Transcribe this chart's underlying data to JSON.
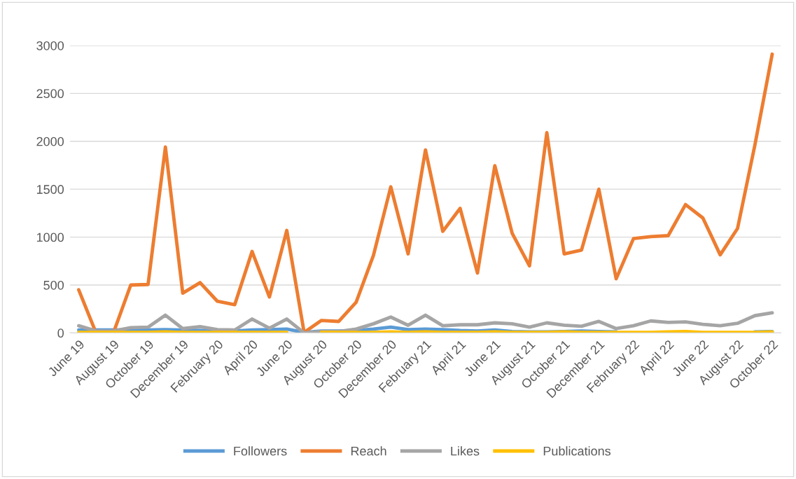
{
  "chart_data": {
    "type": "line",
    "categories": [
      "June 19",
      null,
      "August 19",
      null,
      "October 19",
      null,
      "December 19",
      null,
      "February 20",
      null,
      "April 20",
      null,
      "June 20",
      null,
      "August 20",
      null,
      "October 20",
      null,
      "December 20",
      null,
      "February 21",
      null,
      "April 21",
      null,
      "June 21",
      null,
      "August 21",
      null,
      "October 21",
      null,
      "December 21",
      null,
      "February 22",
      null,
      "April 22",
      null,
      "June 22",
      null,
      "August 22",
      null,
      "October 22"
    ],
    "series": [
      {
        "name": "Followers",
        "color": "#5b9bd5",
        "values": [
          30,
          30,
          30,
          30,
          30,
          35,
          30,
          25,
          20,
          20,
          30,
          35,
          40,
          5,
          20,
          20,
          25,
          40,
          60,
          35,
          40,
          35,
          25,
          20,
          30,
          15,
          10,
          10,
          15,
          20,
          15,
          10,
          null,
          null,
          null,
          null,
          null,
          null,
          null,
          10,
          15
        ]
      },
      {
        "name": "Reach",
        "color": "#ed7d31",
        "values": [
          450,
          0,
          0,
          500,
          505,
          1940,
          415,
          525,
          330,
          295,
          850,
          375,
          1070,
          5,
          130,
          120,
          320,
          810,
          1525,
          825,
          1910,
          1060,
          1300,
          625,
          1745,
          1040,
          700,
          2090,
          825,
          865,
          1500,
          565,
          985,
          1005,
          1015,
          1340,
          1200,
          815,
          1090,
          1960,
          2910
        ]
      },
      {
        "name": "Likes",
        "color": "#a5a5a5",
        "values": [
          75,
          20,
          20,
          55,
          60,
          185,
          45,
          65,
          35,
          30,
          145,
          50,
          145,
          0,
          15,
          15,
          40,
          95,
          165,
          80,
          185,
          75,
          85,
          85,
          105,
          95,
          60,
          105,
          80,
          70,
          120,
          45,
          75,
          125,
          110,
          115,
          90,
          75,
          100,
          180,
          210
        ]
      },
      {
        "name": "Publications",
        "color": "#ffc000",
        "values": [
          5,
          5,
          5,
          5,
          5,
          10,
          5,
          5,
          5,
          5,
          5,
          5,
          5,
          null,
          5,
          5,
          5,
          5,
          10,
          5,
          10,
          5,
          5,
          5,
          10,
          5,
          5,
          5,
          10,
          5,
          5,
          5,
          5,
          5,
          10,
          15,
          5,
          5,
          5,
          5,
          10
        ]
      }
    ],
    "ylim": [
      0,
      3000
    ],
    "yticks": [
      0,
      500,
      1000,
      1500,
      2000,
      2500,
      3000
    ],
    "grid": "y",
    "legend": "bottom",
    "line_style": "solid",
    "marker": "none"
  }
}
